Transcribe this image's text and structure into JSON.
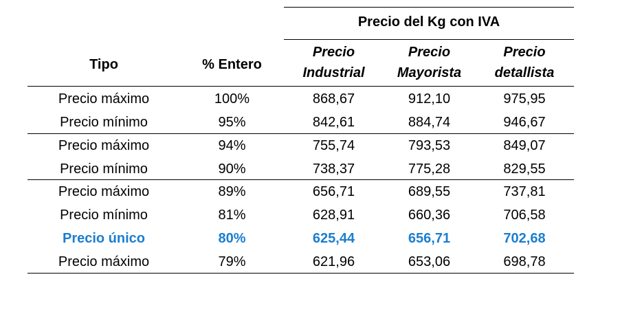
{
  "table": {
    "group_header": "Precio del Kg con IVA",
    "columns": {
      "tipo": "Tipo",
      "entero": "% Entero",
      "industrial_1": "Precio",
      "industrial_2": "Industrial",
      "mayorista_1": "Precio",
      "mayorista_2": "Mayorista",
      "detallista_1": "Precio",
      "detallista_2": "detallista"
    },
    "rows": [
      {
        "tipo": "Precio máximo",
        "entero": "100%",
        "industrial": "868,67",
        "mayorista": "912,10",
        "detallista": "975,95"
      },
      {
        "tipo": "Precio mínimo",
        "entero": "95%",
        "industrial": "842,61",
        "mayorista": "884,74",
        "detallista": "946,67"
      },
      {
        "tipo": "Precio máximo",
        "entero": "94%",
        "industrial": "755,74",
        "mayorista": "793,53",
        "detallista": "849,07"
      },
      {
        "tipo": "Precio mínimo",
        "entero": "90%",
        "industrial": "738,37",
        "mayorista": "775,28",
        "detallista": "829,55"
      },
      {
        "tipo": "Precio máximo",
        "entero": "89%",
        "industrial": "656,71",
        "mayorista": "689,55",
        "detallista": "737,81"
      },
      {
        "tipo": "Precio mínimo",
        "entero": "81%",
        "industrial": "628,91",
        "mayorista": "660,36",
        "detallista": "706,58"
      },
      {
        "tipo": "Precio único",
        "entero": "80%",
        "industrial": "625,44",
        "mayorista": "656,71",
        "detallista": "702,68"
      },
      {
        "tipo": "Precio máximo",
        "entero": "79%",
        "industrial": "621,96",
        "mayorista": "653,06",
        "detallista": "698,78"
      }
    ],
    "highlight_color": "#1b7ecf"
  }
}
